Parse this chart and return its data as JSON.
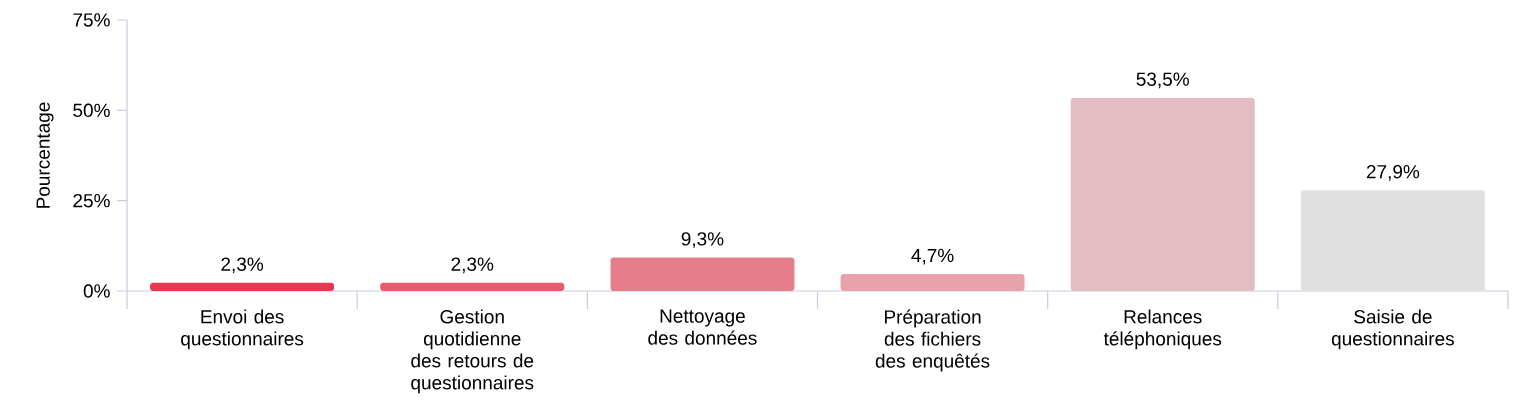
{
  "chart_data": {
    "type": "bar",
    "ylabel": "Pourcentage",
    "categories": [
      "Envoi des questionnaires",
      "Gestion quotidienne des retours de questionnaires",
      "Nettoyage des données",
      "Préparation des fichiers des enquêtés",
      "Relances téléphoniques",
      "Saisie de questionnaires"
    ],
    "values": [
      2.3,
      2.3,
      9.3,
      4.7,
      53.5,
      27.9
    ],
    "value_labels": [
      "2,3%",
      "2,3%",
      "9,3%",
      "4,7%",
      "53,5%",
      "27,9%"
    ],
    "colors": [
      "#e8374f",
      "#e85a6d",
      "#e57d8b",
      "#e8a2ab",
      "#e2bec4",
      "#e0e0e0"
    ],
    "ylim": [
      0,
      75
    ],
    "yticks": [
      {
        "value": 0,
        "label": "0%"
      },
      {
        "value": 25,
        "label": "25%"
      },
      {
        "value": 50,
        "label": "50%"
      },
      {
        "value": 75,
        "label": "75%"
      }
    ],
    "grid": false
  }
}
